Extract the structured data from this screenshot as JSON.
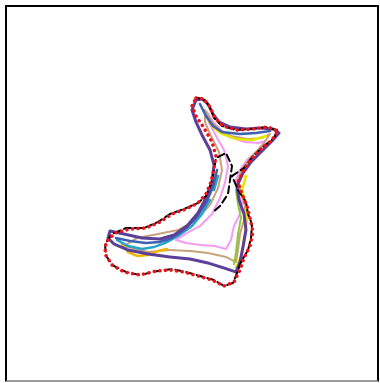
{
  "figure": {
    "kind": "shape-contour-overlay",
    "background": "#ffffff",
    "border_color": "#000000",
    "contours": [
      {
        "id": "contour-pink",
        "color": "#f39cf2",
        "style": "solid"
      },
      {
        "id": "contour-tan",
        "color": "#c8a27a",
        "style": "solid"
      },
      {
        "id": "contour-orange",
        "color": "#f5b400",
        "style": "solid"
      },
      {
        "id": "contour-cyan",
        "color": "#2aa3c8",
        "style": "solid"
      },
      {
        "id": "contour-yellow",
        "color": "#e5e600",
        "style": "solid"
      },
      {
        "id": "contour-green",
        "color": "#8dc63f",
        "style": "solid"
      },
      {
        "id": "contour-blue",
        "color": "#3f5fb0",
        "style": "solid"
      },
      {
        "id": "contour-purple",
        "color": "#5b3f98",
        "style": "solid"
      },
      {
        "id": "contour-black-dashed",
        "color": "#000000",
        "style": "dashed"
      },
      {
        "id": "contour-red-dotted",
        "color": "#e8141a",
        "style": "dotted"
      }
    ]
  }
}
